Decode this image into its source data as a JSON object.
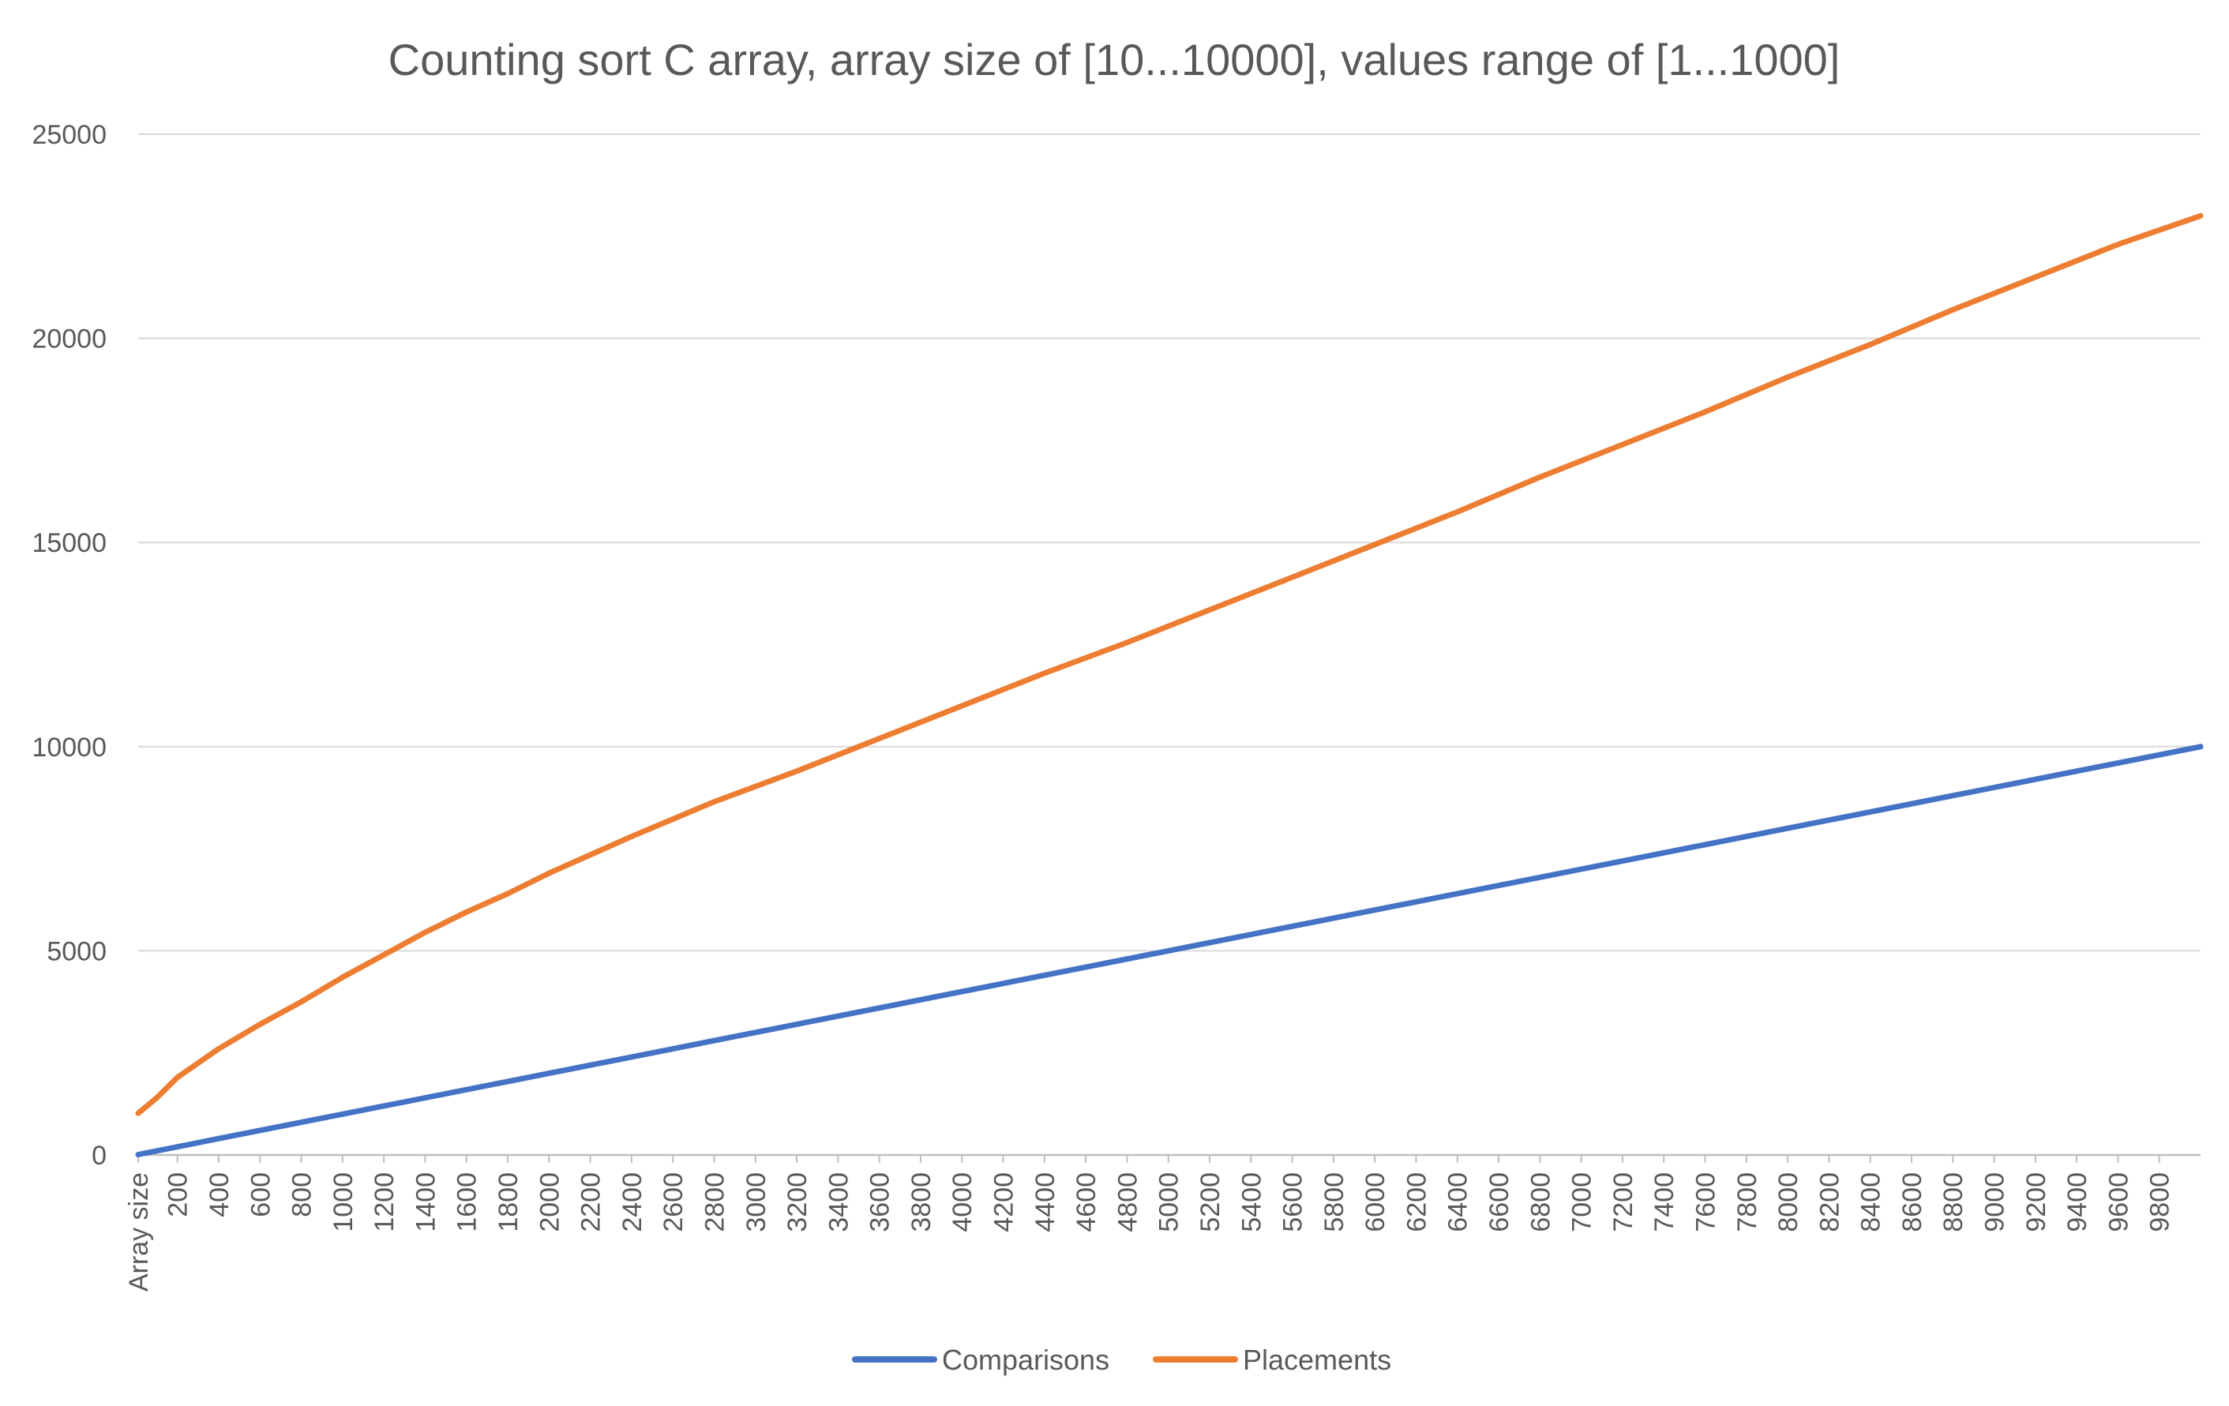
{
  "chart_data": {
    "type": "line",
    "title": "Counting sort C array, array size of [10...10000], values range of [1...1000]",
    "xlabel": "",
    "ylabel": "",
    "x_first_tick_label": "Array size",
    "x_range": [
      10,
      10000
    ],
    "x_tick_labels": [
      "200",
      "400",
      "600",
      "800",
      "1000",
      "1200",
      "1400",
      "1600",
      "1800",
      "2000",
      "2200",
      "2400",
      "2600",
      "2800",
      "3000",
      "3200",
      "3400",
      "3600",
      "3800",
      "4000",
      "4200",
      "4400",
      "4600",
      "4800",
      "5000",
      "5200",
      "5400",
      "5600",
      "5800",
      "6000",
      "6200",
      "6400",
      "6600",
      "6800",
      "7000",
      "7200",
      "7400",
      "7600",
      "7800",
      "8000",
      "8200",
      "8400",
      "8600",
      "8800",
      "9000",
      "9200",
      "9400",
      "9600",
      "9800"
    ],
    "ylim": [
      0,
      25000
    ],
    "y_ticks": [
      0,
      5000,
      10000,
      15000,
      20000,
      25000
    ],
    "grid": "horizontal",
    "legend_position": "bottom",
    "series": [
      {
        "name": "Comparisons",
        "color": "#4472C4",
        "x": [
          10,
          500,
          1000,
          2000,
          3000,
          4000,
          5000,
          6000,
          7000,
          8000,
          9000,
          10000
        ],
        "values": [
          10,
          500,
          1000,
          2000,
          3000,
          4000,
          5000,
          6000,
          7000,
          8000,
          9000,
          10000
        ]
      },
      {
        "name": "Placements",
        "color": "#ED7D31",
        "x": [
          10,
          100,
          200,
          400,
          600,
          800,
          1000,
          1200,
          1400,
          1600,
          1800,
          2000,
          2400,
          2800,
          3200,
          3600,
          4000,
          4400,
          4800,
          5200,
          5600,
          6000,
          6400,
          6800,
          7200,
          7600,
          8000,
          8400,
          8800,
          9200,
          9600,
          10000
        ],
        "values": [
          1020,
          1400,
          1900,
          2600,
          3200,
          3750,
          4350,
          4900,
          5450,
          5950,
          6400,
          6900,
          7800,
          8650,
          9400,
          10200,
          11000,
          11800,
          12550,
          13350,
          14150,
          14950,
          15750,
          16600,
          17400,
          18200,
          19050,
          19850,
          20700,
          21500,
          22300,
          23000
        ]
      }
    ]
  }
}
